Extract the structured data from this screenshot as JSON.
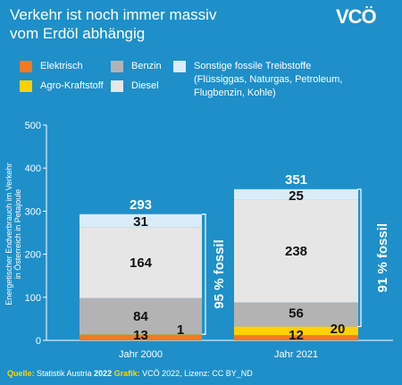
{
  "header": {
    "title_line1": "Verkehr ist noch immer massiv",
    "title_line2": "vom Erdöl abhängig",
    "logo_text": "VCÖ"
  },
  "colors": {
    "background": "#1f8fc9",
    "elektrisch": "#f47920",
    "agro": "#ffd100",
    "benzin": "#b3b3b3",
    "diesel": "#e6e6e6",
    "sonstige": "#d9ecf8"
  },
  "legend": [
    {
      "key": "elektrisch",
      "label": "Elektrisch"
    },
    {
      "key": "agro",
      "label": "Agro-Kraftstoff"
    },
    {
      "key": "benzin",
      "label": "Benzin"
    },
    {
      "key": "diesel",
      "label": "Diesel"
    },
    {
      "key": "sonstige",
      "label": "Sonstige fossile Treibstoffe\n(Flüssiggas, Naturgas, Petroleum,\nFlugbenzin, Kohle)"
    }
  ],
  "chart_data": {
    "type": "bar",
    "stacked": true,
    "categories": [
      "Jahr 2000",
      "Jahr 2021"
    ],
    "series": [
      {
        "name": "Elektrisch",
        "key": "elektrisch",
        "values": [
          13,
          12
        ],
        "labels": [
          "13",
          "12"
        ]
      },
      {
        "name": "Agro-Kraftstoff",
        "key": "agro",
        "values": [
          1,
          20
        ],
        "labels": [
          "1",
          "20"
        ]
      },
      {
        "name": "Benzin",
        "key": "benzin",
        "values": [
          84,
          56
        ],
        "labels": [
          "84",
          "56"
        ]
      },
      {
        "name": "Diesel",
        "key": "diesel",
        "values": [
          164,
          238
        ],
        "labels": [
          "164",
          "238"
        ]
      },
      {
        "name": "Sonstige fossile Treibstoffe",
        "key": "sonstige",
        "values": [
          31,
          25
        ],
        "labels": [
          "31",
          "25"
        ]
      }
    ],
    "totals": [
      "293",
      "351"
    ],
    "fossil_labels": [
      "95 % fossil",
      "91 % fossil"
    ],
    "ylabel": "Energetischer Endverbrauch im Verkehr\nin Österreich in Petajoule",
    "ylim": [
      0,
      500
    ],
    "yticks": [
      0,
      100,
      200,
      300,
      400,
      500
    ],
    "grid": false
  },
  "footer": {
    "source_label": "Quelle:",
    "source": "Statistik Austria",
    "source_year": "2022",
    "graphic_label": "Grafik:",
    "graphic": "VCÖ 2022, Lizenz: CC BY_ND"
  }
}
